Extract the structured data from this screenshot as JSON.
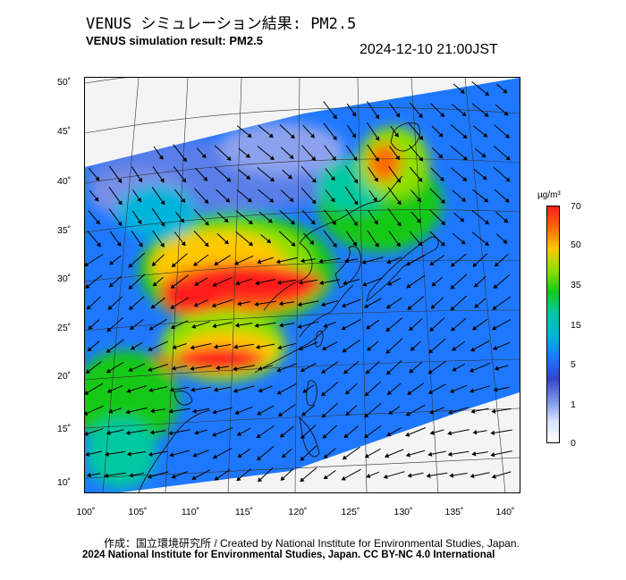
{
  "header": {
    "title_ja": "VENUS シミュレーション結果: PM2.5",
    "title_en": "VENUS simulation result: PM2.5",
    "timestamp": "2024-12-10 21:00JST"
  },
  "map": {
    "lat_ticks": [
      "50˚",
      "45˚",
      "40˚",
      "35˚",
      "30˚",
      "25˚",
      "20˚",
      "15˚",
      "10˚"
    ],
    "lon_ticks": [
      "100˚",
      "105˚",
      "110˚",
      "115˚",
      "120˚",
      "125˚",
      "130˚",
      "135˚",
      "140˚"
    ],
    "extent": {
      "lon_min": 100,
      "lon_max": 141,
      "lat_min": 9,
      "lat_max": 51
    }
  },
  "legend": {
    "unit": "µg/m³",
    "labels": [
      "70",
      "50",
      "35",
      "15",
      "5",
      "1",
      "0"
    ],
    "colors": [
      "#ff1e1e",
      "#ff6a00",
      "#ffc800",
      "#8ee000",
      "#19c819",
      "#00c8a0",
      "#00b4dc",
      "#1e78ff",
      "#3246c8",
      "#7890e6",
      "#d6e2ff",
      "#ffffff"
    ]
  },
  "footer": {
    "credit": "作成：国立環境研究所 / Created by National Institute for Environmental Studies, Japan.",
    "copyright": "2024 National Institute for Environmental Studies, Japan. CC BY-NC 4.0 International"
  }
}
